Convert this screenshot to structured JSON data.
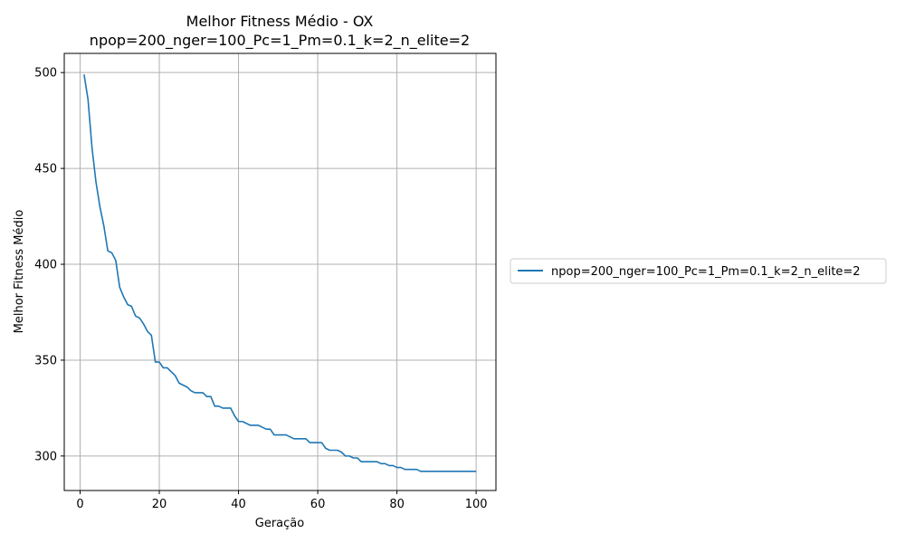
{
  "chart_data": {
    "type": "line",
    "title": "Melhor Fitness Médio - OX",
    "subtitle": "npop=200_nger=100_Pc=1_Pm=0.1_k=2_n_elite=2",
    "xlabel": "Geração",
    "ylabel": "Melhor Fitness Médio",
    "xlim": [
      -4,
      105
    ],
    "ylim": [
      282,
      510
    ],
    "xticks": [
      0,
      20,
      40,
      60,
      80,
      100
    ],
    "yticks": [
      300,
      350,
      400,
      450,
      500
    ],
    "grid": true,
    "legend_position": "outside-right",
    "series": [
      {
        "name": "npop=200_nger=100_Pc=1_Pm=0.1_k=2_n_elite=2",
        "color": "#1f77b4",
        "x": [
          1,
          2,
          3,
          4,
          5,
          6,
          7,
          8,
          9,
          10,
          11,
          12,
          13,
          14,
          15,
          16,
          17,
          18,
          19,
          20,
          21,
          22,
          23,
          24,
          25,
          26,
          27,
          28,
          29,
          30,
          31,
          32,
          33,
          34,
          35,
          36,
          37,
          38,
          39,
          40,
          41,
          42,
          43,
          44,
          45,
          46,
          47,
          48,
          49,
          50,
          51,
          52,
          53,
          54,
          55,
          56,
          57,
          58,
          59,
          60,
          61,
          62,
          63,
          64,
          65,
          66,
          67,
          68,
          69,
          70,
          71,
          72,
          73,
          74,
          75,
          76,
          77,
          78,
          79,
          80,
          81,
          82,
          83,
          84,
          85,
          86,
          87,
          88,
          89,
          90,
          91,
          92,
          93,
          94,
          95,
          96,
          97,
          98,
          99,
          100
        ],
        "values": [
          499,
          486,
          461,
          443,
          430,
          420,
          407,
          406,
          402,
          388,
          383,
          379,
          378,
          373,
          372,
          369,
          365,
          363,
          349,
          349,
          346,
          346,
          344,
          342,
          338,
          337,
          336,
          334,
          333,
          333,
          333,
          331,
          331,
          326,
          326,
          325,
          325,
          325,
          321,
          318,
          318,
          317,
          316,
          316,
          316,
          315,
          314,
          314,
          311,
          311,
          311,
          311,
          310,
          309,
          309,
          309,
          309,
          307,
          307,
          307,
          307,
          304,
          303,
          303,
          303,
          302,
          300,
          300,
          299,
          299,
          297,
          297,
          297,
          297,
          297,
          296,
          296,
          295,
          295,
          294,
          294,
          293,
          293,
          293,
          293,
          292,
          292,
          292,
          292,
          292,
          292,
          292,
          292,
          292,
          292,
          292,
          292,
          292,
          292,
          292
        ]
      }
    ]
  }
}
